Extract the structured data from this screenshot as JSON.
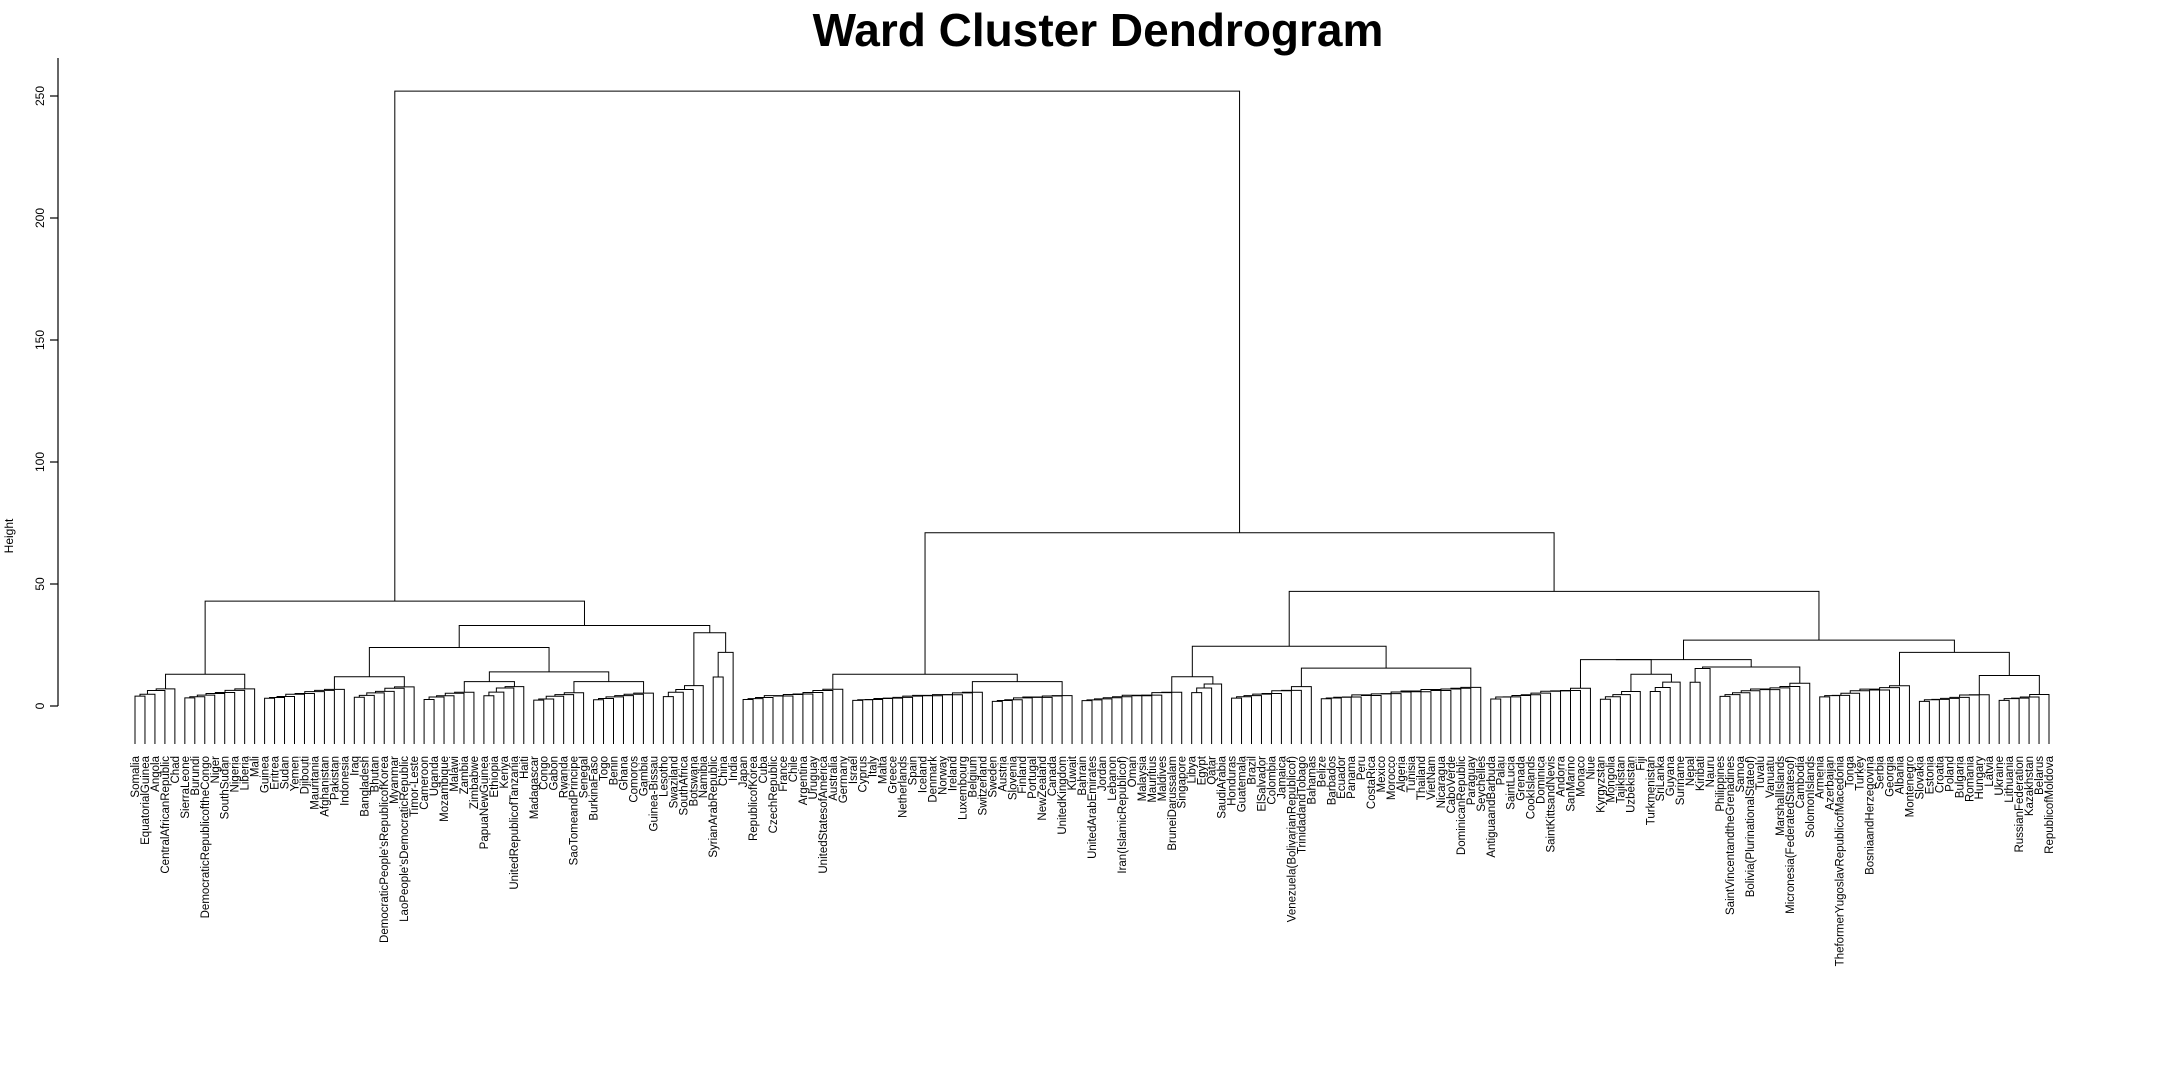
{
  "chart_data": {
    "type": "dendrogram",
    "title": "Ward Cluster Dendrogram",
    "ylabel": "Height",
    "ylim": [
      0,
      265
    ],
    "yticks": [
      0,
      50,
      100,
      150,
      200,
      250
    ],
    "leaves": [
      "Somalia",
      "EquatorialGuinea",
      "Angola",
      "CentralAfricanRepublic",
      "Chad",
      "SierraLeone",
      "Burundi",
      "DemocraticRepublicoftheCongo",
      "Niger",
      "SouthSudan",
      "Nigeria",
      "Liberia",
      "Mali",
      "Guinea",
      "Eritrea",
      "Sudan",
      "Yemen",
      "Djibouti",
      "Mauritania",
      "Afghanistan",
      "Pakistan",
      "Indonesia",
      "Iraq",
      "Bangladesh",
      "Bhutan",
      "DemocraticPeople'sRepublicofKorea",
      "Myanmar",
      "LaoPeople'sDemocraticRepublic",
      "Timor-Leste",
      "Cameroon",
      "Uganda",
      "Mozambique",
      "Malawi",
      "Zambia",
      "Zimbabwe",
      "PapuaNewGuinea",
      "Ethiopia",
      "Kenya",
      "UnitedRepublicofTanzania",
      "Haiti",
      "Madagascar",
      "Congo",
      "Gabon",
      "Rwanda",
      "SaoTomeandPrincipe",
      "Senegal",
      "BurkinaFaso",
      "Togo",
      "Benin",
      "Ghana",
      "Comoros",
      "Gambia",
      "Guinea-Bissau",
      "Lesotho",
      "Swaziland",
      "SouthAfrica",
      "Botswana",
      "Namibia",
      "SyrianArabRepublic",
      "China",
      "India",
      "Japan",
      "RepublicofKorea",
      "Cuba",
      "CzechRepublic",
      "France",
      "Chile",
      "Argentina",
      "Uruguay",
      "UnitedStatesofAmerica",
      "Australia",
      "Germany",
      "Israel",
      "Cyprus",
      "Italy",
      "Malta",
      "Greece",
      "Netherlands",
      "Spain",
      "Iceland",
      "Denmark",
      "Norway",
      "Ireland",
      "Luxembourg",
      "Belgium",
      "Switzerland",
      "Sweden",
      "Austria",
      "Slovenia",
      "Finland",
      "Portugal",
      "NewZealand",
      "Canada",
      "UnitedKingdom",
      "Kuwait",
      "Bahrain",
      "UnitedArabEmirates",
      "Jordan",
      "Lebanon",
      "Iran(IslamicRepublicof)",
      "Oman",
      "Malaysia",
      "Mauritius",
      "Maldives",
      "BruneiDarussalam",
      "Singapore",
      "Libya",
      "Egypt",
      "Qatar",
      "SaudiArabia",
      "Honduras",
      "Guatemala",
      "Brazil",
      "ElSalvador",
      "Colombia",
      "Jamaica",
      "Venezuela(BolivarianRepublicof)",
      "TrinidadandTobago",
      "Bahamas",
      "Belize",
      "Barbados",
      "Ecuador",
      "Panama",
      "Peru",
      "CostaRica",
      "Mexico",
      "Morocco",
      "Algeria",
      "Tunisia",
      "Thailand",
      "VietNam",
      "Nicaragua",
      "CaboVerde",
      "DominicanRepublic",
      "Paraguay",
      "Seychelles",
      "AntiguaandBarbuda",
      "Palau",
      "SaintLucia",
      "Grenada",
      "CookIslands",
      "Dominica",
      "SaintKittsandNevis",
      "Andorra",
      "SanMarino",
      "Monaco",
      "Niue",
      "Kyrgyzstan",
      "Mongolia",
      "Tajikistan",
      "Uzbekistan",
      "Fiji",
      "Turkmenistan",
      "SriLanka",
      "Guyana",
      "Suriname",
      "Nepal",
      "Kiribati",
      "Nauru",
      "Philippines",
      "SaintVincentandtheGrenadines",
      "Samoa",
      "Bolivia(PlurinationalStateof)",
      "Tuvalu",
      "Vanuatu",
      "MarshallIslands",
      "Micronesia(FederatedStatesof)",
      "Cambodia",
      "SolomonIslands",
      "Armenia",
      "Azerbaijan",
      "TheformerYugoslavRepublicofMacedonia",
      "Tonga",
      "Turkey",
      "BosniaandHerzegovina",
      "Serbia",
      "Georgia",
      "Albania",
      "Montenegro",
      "Slovakia",
      "Estonia",
      "Croatia",
      "Poland",
      "Bulgaria",
      "Romania",
      "Hungary",
      "Latvia",
      "Ukraine",
      "Lithuania",
      "RussianFederation",
      "Kazakhstan",
      "Belarus",
      "RepublicofMoldova"
    ]
  }
}
